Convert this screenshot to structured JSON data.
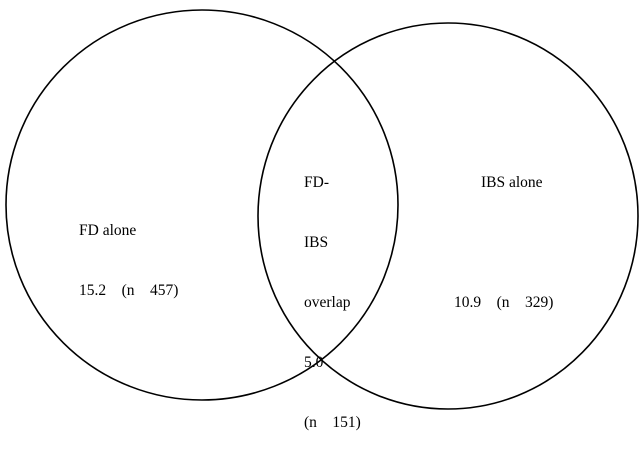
{
  "diagram": {
    "type": "venn",
    "sets": [
      {
        "id": "fd",
        "label_lines": [
          "FD alone",
          "15.2    (n    457)"
        ]
      },
      {
        "id": "ibs",
        "label_lines": [
          "IBS alone",
          "",
          "10.9    (n    329)"
        ]
      }
    ],
    "overlap": {
      "label_lines": [
        "FD-",
        "IBS",
        "overlap",
        "5.0",
        "(n    151)"
      ]
    },
    "colors": {
      "stroke": "#000000",
      "background": "#ffffff",
      "text": "#000000"
    }
  }
}
